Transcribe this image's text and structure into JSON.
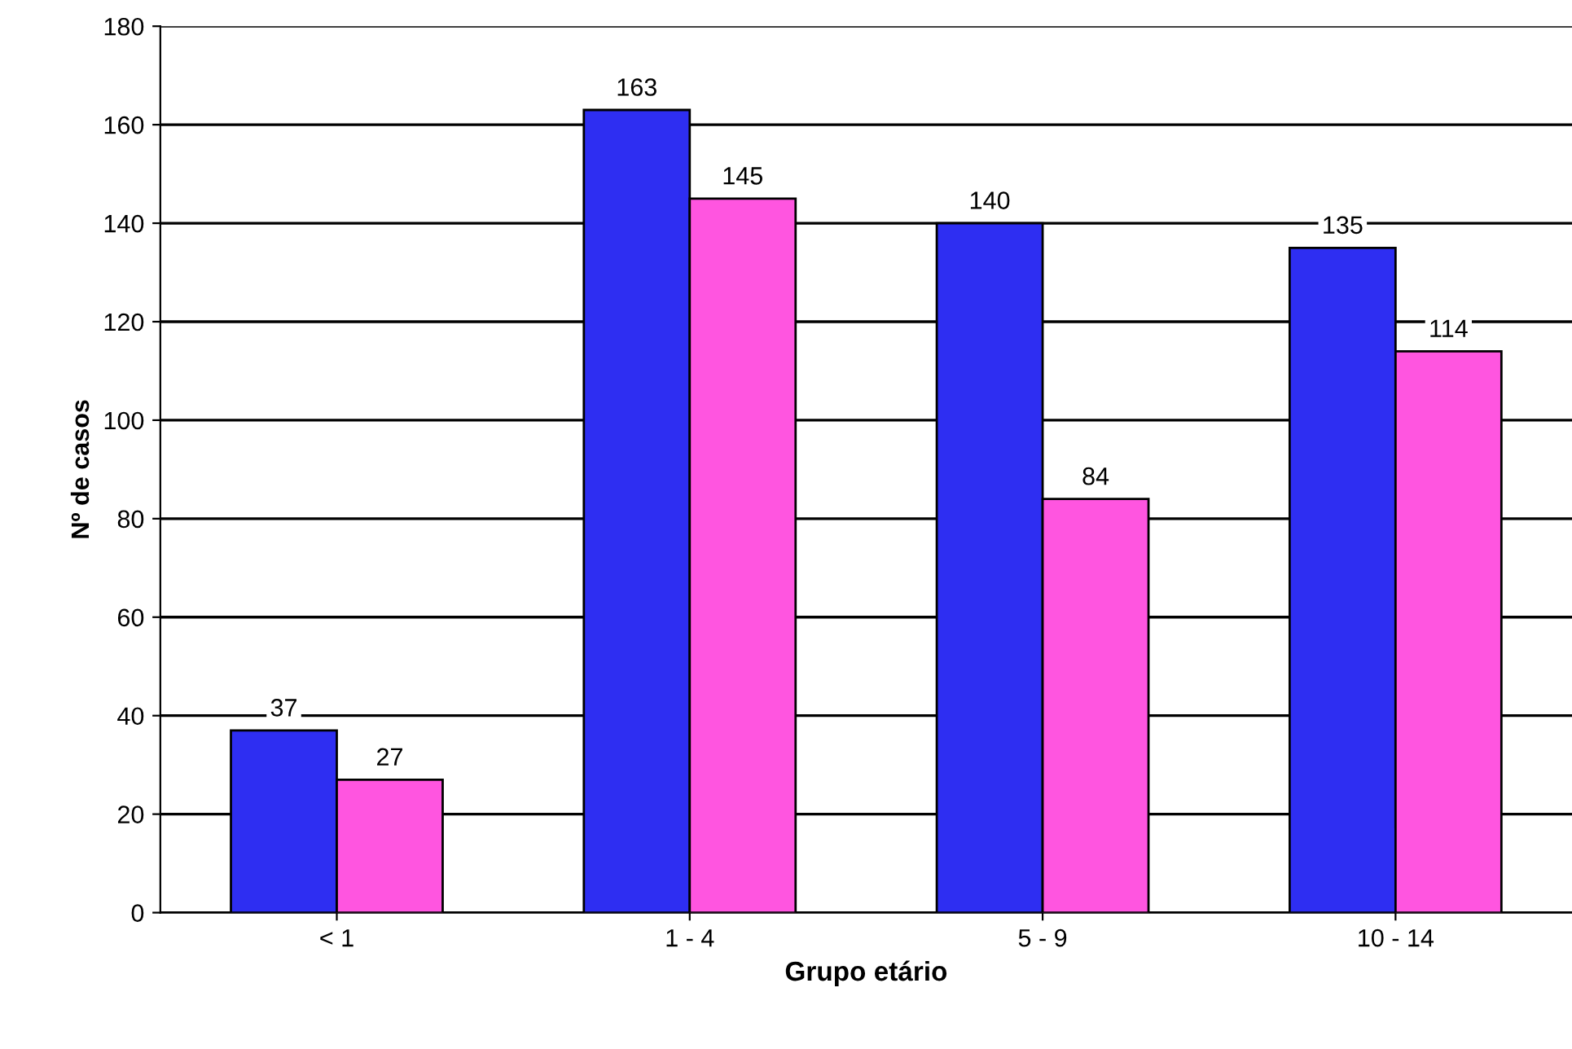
{
  "chart_data": {
    "type": "bar",
    "xlabel": "Grupo etário",
    "ylabel": "Nº de casos",
    "categories": [
      "< 1",
      "1 - 4",
      "5 - 9",
      "10 - 14"
    ],
    "series": [
      {
        "color": "#2e2ef2",
        "values": [
          37,
          163,
          140,
          135
        ]
      },
      {
        "color": "#ff55e0",
        "values": [
          27,
          145,
          84,
          114
        ]
      }
    ],
    "ylim": [
      0,
      180
    ],
    "yticks": [
      0,
      20,
      40,
      60,
      80,
      100,
      120,
      140,
      160,
      180
    ],
    "grid": "y",
    "data_labels": true
  }
}
